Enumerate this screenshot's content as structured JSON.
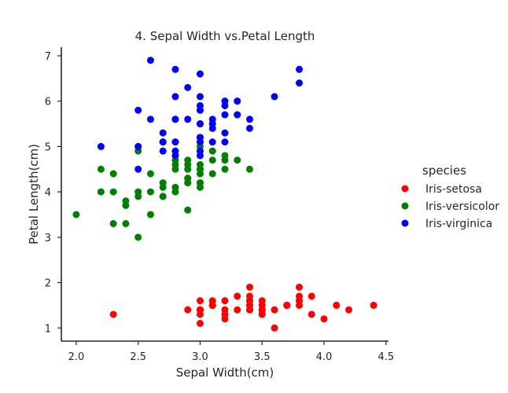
{
  "chart_data": {
    "type": "scatter",
    "title": "4. Sepal Width vs.Petal Length",
    "xlabel": "Sepal Width(cm)",
    "ylabel": "Petal Length(cm)",
    "xlim": [
      1.88,
      4.52
    ],
    "ylim": [
      0.71,
      7.19
    ],
    "xticks": [
      2.0,
      2.5,
      3.0,
      3.5,
      4.0,
      4.5
    ],
    "xtick_labels": [
      "2.0",
      "2.5",
      "3.0",
      "3.5",
      "4.0",
      "4.5"
    ],
    "yticks": [
      1,
      2,
      3,
      4,
      5,
      6,
      7
    ],
    "ytick_labels": [
      "1",
      "2",
      "3",
      "4",
      "5",
      "6",
      "7"
    ],
    "grid": false,
    "legend": {
      "title": "species",
      "placement": "right"
    },
    "series": [
      {
        "name": "Iris-setosa",
        "color": "#ff0000",
        "points": [
          [
            3.5,
            1.4
          ],
          [
            3.0,
            1.4
          ],
          [
            3.2,
            1.3
          ],
          [
            3.1,
            1.5
          ],
          [
            3.6,
            1.4
          ],
          [
            3.9,
            1.7
          ],
          [
            3.4,
            1.4
          ],
          [
            3.4,
            1.5
          ],
          [
            2.9,
            1.4
          ],
          [
            3.1,
            1.5
          ],
          [
            3.7,
            1.5
          ],
          [
            3.4,
            1.6
          ],
          [
            3.0,
            1.4
          ],
          [
            3.0,
            1.1
          ],
          [
            4.0,
            1.2
          ],
          [
            4.4,
            1.5
          ],
          [
            3.9,
            1.3
          ],
          [
            3.5,
            1.4
          ],
          [
            3.8,
            1.7
          ],
          [
            3.8,
            1.5
          ],
          [
            3.4,
            1.7
          ],
          [
            3.7,
            1.5
          ],
          [
            3.6,
            1.0
          ],
          [
            3.3,
            1.7
          ],
          [
            3.4,
            1.9
          ],
          [
            3.0,
            1.6
          ],
          [
            3.4,
            1.6
          ],
          [
            3.5,
            1.5
          ],
          [
            3.4,
            1.4
          ],
          [
            3.2,
            1.6
          ],
          [
            3.1,
            1.6
          ],
          [
            3.4,
            1.5
          ],
          [
            4.1,
            1.5
          ],
          [
            4.2,
            1.4
          ],
          [
            3.1,
            1.5
          ],
          [
            3.2,
            1.2
          ],
          [
            3.5,
            1.3
          ],
          [
            3.1,
            1.5
          ],
          [
            3.0,
            1.3
          ],
          [
            3.4,
            1.5
          ],
          [
            3.5,
            1.3
          ],
          [
            2.3,
            1.3
          ],
          [
            3.2,
            1.3
          ],
          [
            3.5,
            1.6
          ],
          [
            3.8,
            1.9
          ],
          [
            3.0,
            1.4
          ],
          [
            3.8,
            1.6
          ],
          [
            3.2,
            1.4
          ],
          [
            3.7,
            1.5
          ],
          [
            3.3,
            1.4
          ]
        ]
      },
      {
        "name": "Iris-versicolor",
        "color": "#008000",
        "points": [
          [
            3.2,
            4.7
          ],
          [
            3.2,
            4.5
          ],
          [
            3.1,
            4.9
          ],
          [
            2.3,
            4.0
          ],
          [
            2.8,
            4.6
          ],
          [
            2.8,
            4.5
          ],
          [
            3.3,
            4.7
          ],
          [
            2.4,
            3.3
          ],
          [
            2.9,
            4.6
          ],
          [
            2.7,
            3.9
          ],
          [
            2.0,
            3.5
          ],
          [
            3.0,
            4.2
          ],
          [
            2.2,
            4.0
          ],
          [
            2.9,
            4.7
          ],
          [
            2.9,
            3.6
          ],
          [
            3.1,
            4.4
          ],
          [
            3.0,
            4.5
          ],
          [
            2.7,
            4.1
          ],
          [
            2.2,
            4.5
          ],
          [
            2.5,
            3.9
          ],
          [
            3.2,
            4.8
          ],
          [
            2.8,
            4.0
          ],
          [
            2.5,
            4.9
          ],
          [
            2.8,
            4.7
          ],
          [
            2.9,
            4.3
          ],
          [
            3.0,
            4.4
          ],
          [
            2.8,
            4.8
          ],
          [
            3.0,
            5.0
          ],
          [
            2.9,
            4.5
          ],
          [
            2.6,
            3.5
          ],
          [
            2.4,
            3.8
          ],
          [
            2.4,
            3.7
          ],
          [
            2.7,
            3.9
          ],
          [
            2.7,
            5.1
          ],
          [
            3.0,
            4.5
          ],
          [
            3.4,
            4.5
          ],
          [
            3.1,
            4.7
          ],
          [
            2.3,
            4.4
          ],
          [
            3.0,
            4.1
          ],
          [
            2.5,
            4.0
          ],
          [
            2.6,
            4.4
          ],
          [
            3.0,
            4.6
          ],
          [
            2.6,
            4.0
          ],
          [
            2.3,
            3.3
          ],
          [
            2.7,
            4.2
          ],
          [
            3.0,
            4.2
          ],
          [
            2.9,
            4.2
          ],
          [
            2.9,
            4.3
          ],
          [
            2.5,
            3.0
          ],
          [
            2.8,
            4.1
          ]
        ]
      },
      {
        "name": "Iris-virginica",
        "color": "#0000ff",
        "points": [
          [
            3.3,
            6.0
          ],
          [
            2.7,
            5.1
          ],
          [
            3.0,
            5.9
          ],
          [
            2.9,
            5.6
          ],
          [
            3.0,
            5.8
          ],
          [
            3.0,
            6.6
          ],
          [
            2.5,
            4.5
          ],
          [
            2.9,
            6.3
          ],
          [
            2.5,
            5.8
          ],
          [
            3.6,
            6.1
          ],
          [
            3.2,
            5.1
          ],
          [
            2.7,
            5.3
          ],
          [
            3.0,
            5.5
          ],
          [
            2.5,
            5.0
          ],
          [
            2.8,
            5.1
          ],
          [
            3.2,
            5.3
          ],
          [
            3.0,
            5.5
          ],
          [
            3.8,
            6.7
          ],
          [
            2.6,
            6.9
          ],
          [
            2.2,
            5.0
          ],
          [
            3.2,
            5.7
          ],
          [
            2.8,
            4.9
          ],
          [
            2.8,
            6.7
          ],
          [
            2.7,
            4.9
          ],
          [
            3.3,
            5.7
          ],
          [
            3.2,
            6.0
          ],
          [
            2.8,
            4.8
          ],
          [
            3.0,
            4.9
          ],
          [
            2.8,
            5.6
          ],
          [
            3.0,
            5.8
          ],
          [
            2.8,
            6.1
          ],
          [
            3.8,
            6.4
          ],
          [
            2.8,
            5.6
          ],
          [
            2.8,
            5.1
          ],
          [
            2.6,
            5.6
          ],
          [
            3.0,
            6.1
          ],
          [
            3.4,
            5.6
          ],
          [
            3.1,
            5.5
          ],
          [
            3.0,
            4.8
          ],
          [
            3.1,
            5.4
          ],
          [
            3.1,
            5.6
          ],
          [
            3.1,
            5.1
          ],
          [
            2.7,
            5.1
          ],
          [
            3.2,
            5.9
          ],
          [
            3.3,
            5.7
          ],
          [
            3.0,
            5.2
          ],
          [
            2.5,
            5.0
          ],
          [
            3.0,
            5.2
          ],
          [
            3.4,
            5.4
          ],
          [
            3.0,
            5.1
          ]
        ]
      }
    ]
  }
}
